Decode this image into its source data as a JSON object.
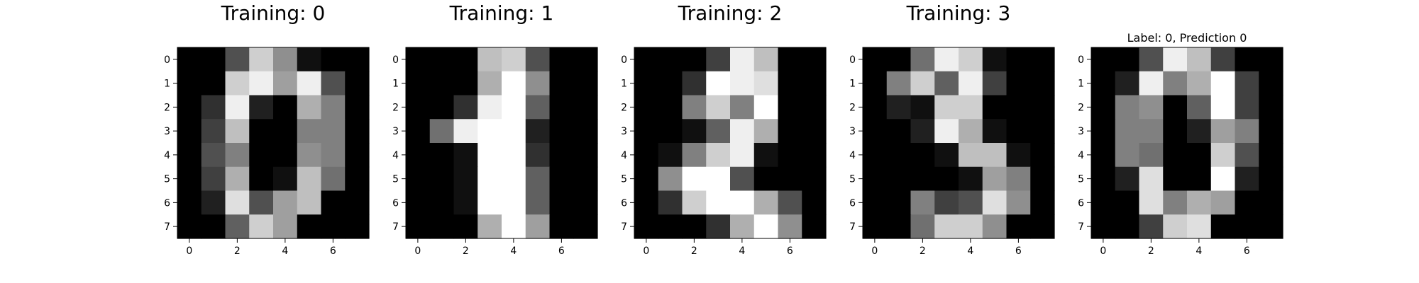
{
  "chart_data": [
    {
      "type": "heatmap",
      "title": "Training: 0",
      "colormap": "gray",
      "vmin": 0,
      "vmax": 16,
      "xticks": [
        0,
        2,
        4,
        6
      ],
      "yticks": [
        0,
        1,
        2,
        3,
        4,
        5,
        6,
        7
      ],
      "grid": false,
      "values": [
        [
          0,
          0,
          5,
          13,
          9,
          1,
          0,
          0
        ],
        [
          0,
          0,
          13,
          15,
          10,
          15,
          5,
          0
        ],
        [
          0,
          3,
          15,
          2,
          0,
          11,
          8,
          0
        ],
        [
          0,
          4,
          12,
          0,
          0,
          8,
          8,
          0
        ],
        [
          0,
          5,
          8,
          0,
          0,
          9,
          8,
          0
        ],
        [
          0,
          4,
          11,
          0,
          1,
          12,
          7,
          0
        ],
        [
          0,
          2,
          14,
          5,
          10,
          12,
          0,
          0
        ],
        [
          0,
          0,
          6,
          13,
          10,
          0,
          0,
          0
        ]
      ]
    },
    {
      "type": "heatmap",
      "title": "Training: 1",
      "colormap": "gray",
      "vmin": 0,
      "vmax": 16,
      "xticks": [
        0,
        2,
        4,
        6
      ],
      "yticks": [
        0,
        1,
        2,
        3,
        4,
        5,
        6,
        7
      ],
      "grid": false,
      "values": [
        [
          0,
          0,
          0,
          12,
          13,
          5,
          0,
          0
        ],
        [
          0,
          0,
          0,
          11,
          16,
          9,
          0,
          0
        ],
        [
          0,
          0,
          3,
          15,
          16,
          6,
          0,
          0
        ],
        [
          0,
          7,
          15,
          16,
          16,
          2,
          0,
          0
        ],
        [
          0,
          0,
          1,
          16,
          16,
          3,
          0,
          0
        ],
        [
          0,
          0,
          1,
          16,
          16,
          6,
          0,
          0
        ],
        [
          0,
          0,
          1,
          16,
          16,
          6,
          0,
          0
        ],
        [
          0,
          0,
          0,
          11,
          16,
          10,
          0,
          0
        ]
      ]
    },
    {
      "type": "heatmap",
      "title": "Training: 2",
      "colormap": "gray",
      "vmin": 0,
      "vmax": 16,
      "xticks": [
        0,
        2,
        4,
        6
      ],
      "yticks": [
        0,
        1,
        2,
        3,
        4,
        5,
        6,
        7
      ],
      "grid": false,
      "values": [
        [
          0,
          0,
          0,
          4,
          15,
          12,
          0,
          0
        ],
        [
          0,
          0,
          3,
          16,
          15,
          14,
          0,
          0
        ],
        [
          0,
          0,
          8,
          13,
          8,
          16,
          0,
          0
        ],
        [
          0,
          0,
          1,
          6,
          15,
          11,
          0,
          0
        ],
        [
          0,
          1,
          8,
          13,
          15,
          1,
          0,
          0
        ],
        [
          0,
          9,
          16,
          16,
          5,
          0,
          0,
          0
        ],
        [
          0,
          3,
          13,
          16,
          16,
          11,
          5,
          0
        ],
        [
          0,
          0,
          0,
          3,
          11,
          16,
          9,
          0
        ]
      ]
    },
    {
      "type": "heatmap",
      "title": "Training: 3",
      "colormap": "gray",
      "vmin": 0,
      "vmax": 16,
      "xticks": [
        0,
        2,
        4,
        6
      ],
      "yticks": [
        0,
        1,
        2,
        3,
        4,
        5,
        6,
        7
      ],
      "grid": false,
      "values": [
        [
          0,
          0,
          7,
          15,
          13,
          1,
          0,
          0
        ],
        [
          0,
          8,
          13,
          6,
          15,
          4,
          0,
          0
        ],
        [
          0,
          2,
          1,
          13,
          13,
          0,
          0,
          0
        ],
        [
          0,
          0,
          2,
          15,
          11,
          1,
          0,
          0
        ],
        [
          0,
          0,
          0,
          1,
          12,
          12,
          1,
          0
        ],
        [
          0,
          0,
          0,
          0,
          1,
          10,
          8,
          0
        ],
        [
          0,
          0,
          8,
          4,
          5,
          14,
          9,
          0
        ],
        [
          0,
          0,
          7,
          13,
          13,
          9,
          0,
          0
        ]
      ]
    },
    {
      "type": "heatmap",
      "title": "Label: 0, Prediction 0",
      "colormap": "gray",
      "vmin": 0,
      "vmax": 16,
      "xticks": [
        0,
        2,
        4,
        6
      ],
      "yticks": [
        0,
        1,
        2,
        3,
        4,
        5,
        6,
        7
      ],
      "grid": false,
      "values": [
        [
          0,
          0,
          5,
          15,
          12,
          4,
          0,
          0
        ],
        [
          0,
          2,
          15,
          8,
          11,
          16,
          4,
          0
        ],
        [
          0,
          8,
          9,
          0,
          6,
          16,
          4,
          0
        ],
        [
          0,
          8,
          8,
          0,
          2,
          10,
          8,
          0
        ],
        [
          0,
          8,
          7,
          0,
          0,
          13,
          5,
          0
        ],
        [
          0,
          2,
          14,
          0,
          0,
          16,
          2,
          0
        ],
        [
          0,
          0,
          14,
          8,
          11,
          10,
          0,
          0
        ],
        [
          0,
          0,
          4,
          13,
          14,
          0,
          0,
          0
        ]
      ]
    }
  ]
}
